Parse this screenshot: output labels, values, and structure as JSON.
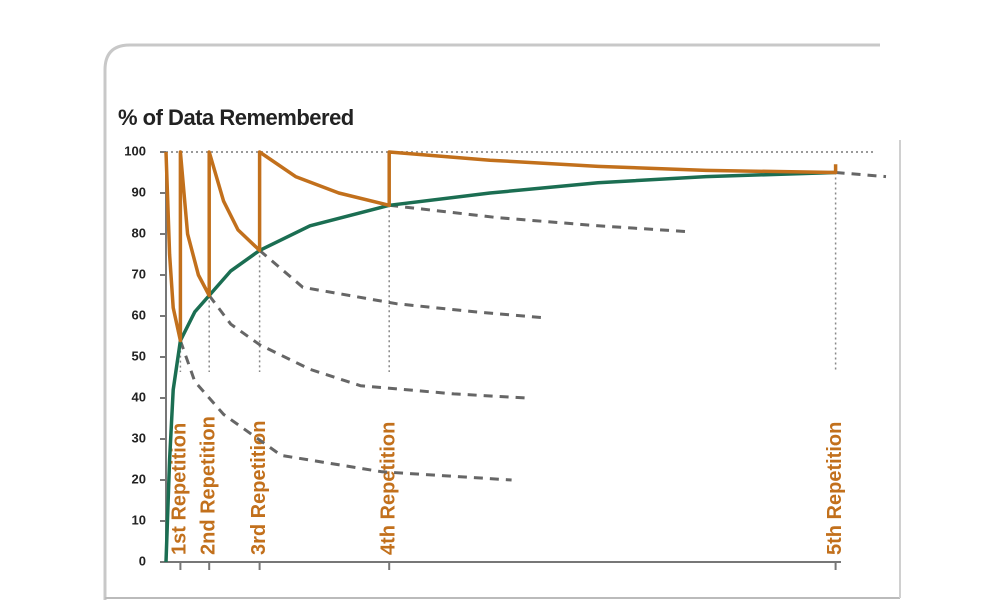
{
  "chart_data": {
    "type": "line",
    "title": "% of Data Remembered",
    "xlim": [
      0,
      100
    ],
    "ylim": [
      0,
      100
    ],
    "yticks": [
      0,
      10,
      20,
      30,
      40,
      50,
      60,
      70,
      80,
      90,
      100
    ],
    "series": [
      {
        "color": "#1b6e52",
        "style": "solid",
        "x": [
          0,
          0.5,
          1,
          2,
          4,
          6,
          9,
          13,
          20,
          31,
          45,
          60,
          75,
          93
        ],
        "values": [
          0,
          25,
          42,
          54,
          61,
          65,
          71,
          76,
          82,
          87,
          90,
          92.5,
          94,
          95
        ]
      },
      {
        "color": "#c2701c",
        "style": "solid",
        "x": [
          0,
          0.5,
          1,
          2,
          2,
          3,
          4.5,
          6,
          6,
          8,
          10,
          13,
          13,
          18,
          24,
          31,
          31,
          45,
          60,
          75,
          93,
          93
        ],
        "values": [
          100,
          75,
          62,
          54,
          100,
          80,
          70,
          65,
          100,
          88,
          81,
          76,
          100,
          94,
          90,
          87,
          100,
          98,
          96.5,
          95.5,
          95,
          97
        ]
      },
      {
        "color": "#666666",
        "style": "dashed",
        "x": [
          2,
          4,
          8,
          16,
          30,
          48
        ],
        "values": [
          54,
          44,
          36,
          26,
          22,
          20
        ]
      },
      {
        "color": "#666666",
        "style": "dashed",
        "x": [
          6,
          9,
          13,
          20,
          27,
          40,
          50
        ],
        "values": [
          65,
          58,
          53,
          47,
          43,
          41,
          40
        ]
      },
      {
        "color": "#666666",
        "style": "dashed",
        "x": [
          13,
          19,
          32,
          43,
          53
        ],
        "values": [
          76,
          67,
          63,
          61,
          59.5
        ]
      },
      {
        "color": "#666666",
        "style": "dashed",
        "x": [
          31,
          46,
          60,
          73
        ],
        "values": [
          87,
          84,
          82,
          80.5
        ]
      },
      {
        "color": "#666666",
        "style": "dashed",
        "x": [
          93,
          100
        ],
        "values": [
          95,
          94
        ]
      }
    ],
    "repetitions": [
      {
        "x": 2,
        "value": 54,
        "label": "1st Repetition"
      },
      {
        "x": 6,
        "value": 65,
        "label": "2nd Repetition"
      },
      {
        "x": 13,
        "value": 76,
        "label": "3rd Repetition"
      },
      {
        "x": 31,
        "value": 87,
        "label": "4th Repetition"
      },
      {
        "x": 93,
        "value": 95,
        "label": "5th Repetition"
      }
    ]
  }
}
